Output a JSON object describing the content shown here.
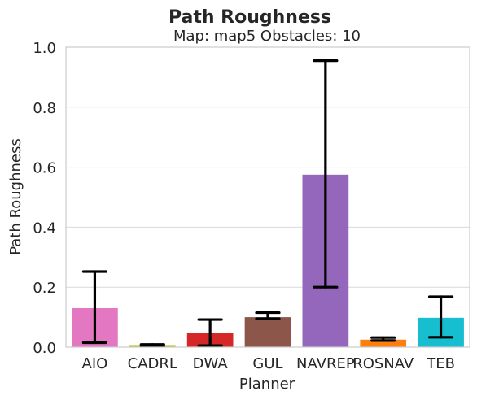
{
  "chart_data": {
    "type": "bar",
    "title": "Path Roughness",
    "subtitle": "Map: map5 Obstacles: 10",
    "xlabel": "Planner",
    "ylabel": "Path Roughness",
    "ylim": [
      0,
      1.0
    ],
    "yticks": [
      "0.0",
      "0.2",
      "0.4",
      "0.6",
      "0.8",
      "1.0"
    ],
    "grid": true,
    "categories": [
      "AIO",
      "CADRL",
      "DWA",
      "GUL",
      "NAVREP",
      "ROSNAV",
      "TEB"
    ],
    "values": [
      0.13,
      0.007,
      0.047,
      0.1,
      0.575,
      0.025,
      0.098
    ],
    "error_low": [
      0.015,
      0.004,
      0.005,
      0.095,
      0.2,
      0.022,
      0.033
    ],
    "error_high": [
      0.252,
      0.009,
      0.092,
      0.115,
      0.955,
      0.032,
      0.168
    ],
    "colors": [
      "#e377c2",
      "#bcbd22",
      "#d62728",
      "#8c564b",
      "#9467bd",
      "#ff7f0e",
      "#17becf"
    ]
  }
}
